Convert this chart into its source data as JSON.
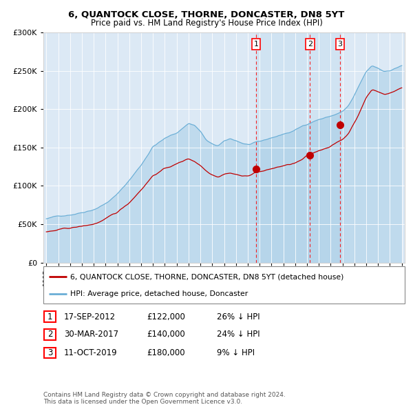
{
  "title": "6, QUANTOCK CLOSE, THORNE, DONCASTER, DN8 5YT",
  "subtitle": "Price paid vs. HM Land Registry's House Price Index (HPI)",
  "legend_line1": "6, QUANTOCK CLOSE, THORNE, DONCASTER, DN8 5YT (detached house)",
  "legend_line2": "HPI: Average price, detached house, Doncaster",
  "footnote1": "Contains HM Land Registry data © Crown copyright and database right 2024.",
  "footnote2": "This data is licensed under the Open Government Licence v3.0.",
  "sales": [
    {
      "label": "1",
      "date": "17-SEP-2012",
      "price": 122000,
      "pct": "26%",
      "x_year": 2012.71
    },
    {
      "label": "2",
      "date": "30-MAR-2017",
      "price": 140000,
      "pct": "24%",
      "x_year": 2017.25
    },
    {
      "label": "3",
      "date": "11-OCT-2019",
      "price": 180000,
      "pct": "9%",
      "x_year": 2019.78
    }
  ],
  "hpi_color": "#6aaed6",
  "sale_color": "#c00000",
  "background_plot": "#dce9f5",
  "highlight_color": "#c8dff0",
  "ylim": [
    0,
    300000
  ],
  "xlim_start": 1994.75,
  "xlim_end": 2025.25
}
